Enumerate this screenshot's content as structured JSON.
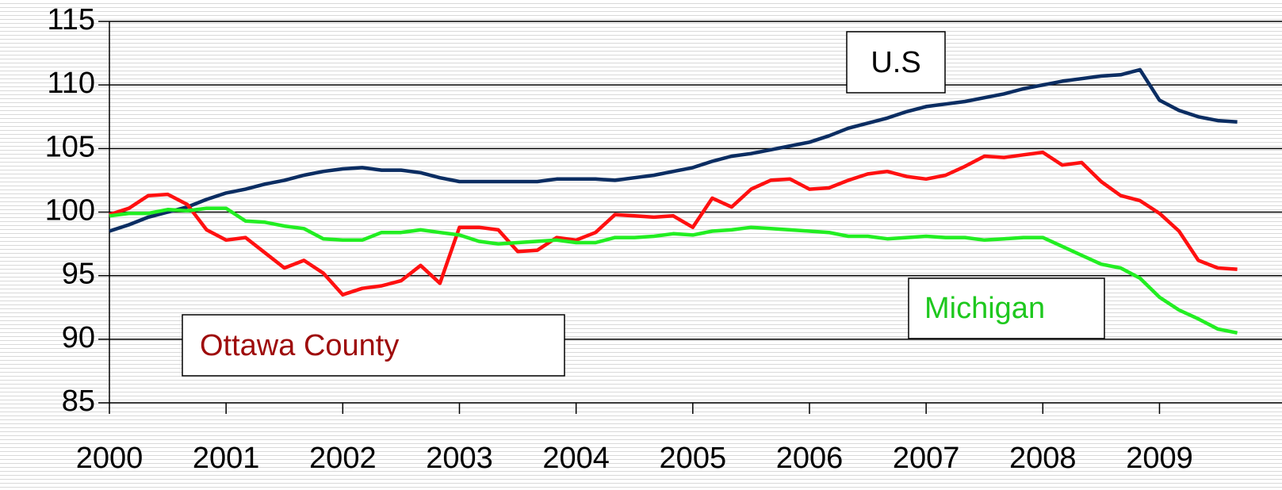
{
  "chart_data": {
    "type": "line",
    "x": [
      2000,
      2000.167,
      2000.333,
      2000.5,
      2000.667,
      2000.833,
      2001,
      2001.167,
      2001.333,
      2001.5,
      2001.667,
      2001.833,
      2002,
      2002.167,
      2002.333,
      2002.5,
      2002.667,
      2002.833,
      2003,
      2003.167,
      2003.333,
      2003.5,
      2003.667,
      2003.833,
      2004,
      2004.167,
      2004.333,
      2004.5,
      2004.667,
      2004.833,
      2005,
      2005.167,
      2005.333,
      2005.5,
      2005.667,
      2005.833,
      2006,
      2006.167,
      2006.333,
      2006.5,
      2006.667,
      2006.833,
      2007,
      2007.167,
      2007.333,
      2007.5,
      2007.667,
      2007.833,
      2008,
      2008.167,
      2008.333,
      2008.5,
      2008.667,
      2008.833,
      2009,
      2009.167,
      2009.333,
      2009.5,
      2009.667
    ],
    "series": [
      {
        "name": "U.S",
        "color": "#0b2d62",
        "values": [
          98.5,
          99.0,
          99.6,
          100.0,
          100.4,
          101.0,
          101.5,
          101.8,
          102.2,
          102.5,
          102.9,
          103.2,
          103.4,
          103.5,
          103.3,
          103.3,
          103.1,
          102.7,
          102.4,
          102.4,
          102.4,
          102.4,
          102.4,
          102.6,
          102.6,
          102.6,
          102.5,
          102.7,
          102.9,
          103.2,
          103.5,
          104.0,
          104.4,
          104.6,
          104.9,
          105.2,
          105.5,
          106.0,
          106.6,
          107.0,
          107.4,
          107.9,
          108.3,
          108.5,
          108.7,
          109.0,
          109.3,
          109.7,
          110.0,
          110.3,
          110.5,
          110.7,
          110.8,
          111.2,
          108.8,
          108.0,
          107.5,
          107.2,
          107.1
        ]
      },
      {
        "name": "Ottawa County",
        "color": "#ff1010",
        "values": [
          99.8,
          100.3,
          101.3,
          101.4,
          100.6,
          98.6,
          97.8,
          98.0,
          96.8,
          95.6,
          96.2,
          95.2,
          93.5,
          94.0,
          94.2,
          94.6,
          95.8,
          94.4,
          98.8,
          98.8,
          98.6,
          96.9,
          97.0,
          98.0,
          97.8,
          98.4,
          99.8,
          99.7,
          99.6,
          99.7,
          98.8,
          101.1,
          100.4,
          101.8,
          102.5,
          102.6,
          101.8,
          101.9,
          102.5,
          103.0,
          103.2,
          102.8,
          102.6,
          102.9,
          103.6,
          104.4,
          104.3,
          104.5,
          104.7,
          103.7,
          103.9,
          102.4,
          101.3,
          100.9,
          99.9,
          98.5,
          96.2,
          95.6,
          95.5
        ]
      },
      {
        "name": "Michigan",
        "color": "#22ee22",
        "values": [
          99.7,
          99.9,
          99.9,
          100.2,
          100.1,
          100.3,
          100.3,
          99.3,
          99.2,
          98.9,
          98.7,
          97.9,
          97.8,
          97.8,
          98.4,
          98.4,
          98.6,
          98.4,
          98.2,
          97.7,
          97.5,
          97.6,
          97.7,
          97.8,
          97.6,
          97.6,
          98.0,
          98.0,
          98.1,
          98.3,
          98.2,
          98.5,
          98.6,
          98.8,
          98.7,
          98.6,
          98.5,
          98.4,
          98.1,
          98.1,
          97.9,
          98.0,
          98.1,
          98.0,
          98.0,
          97.8,
          97.9,
          98.0,
          98.0,
          97.3,
          96.6,
          95.9,
          95.6,
          94.8,
          93.3,
          92.3,
          91.6,
          90.8,
          90.5
        ]
      }
    ],
    "xlim": [
      2000,
      2010.05
    ],
    "xticks": [
      2000,
      2001,
      2002,
      2003,
      2004,
      2005,
      2006,
      2007,
      2008,
      2009
    ],
    "ylim": [
      85,
      115
    ],
    "yticks": [
      85,
      90,
      95,
      100,
      105,
      110,
      115
    ],
    "grid": true
  }
}
